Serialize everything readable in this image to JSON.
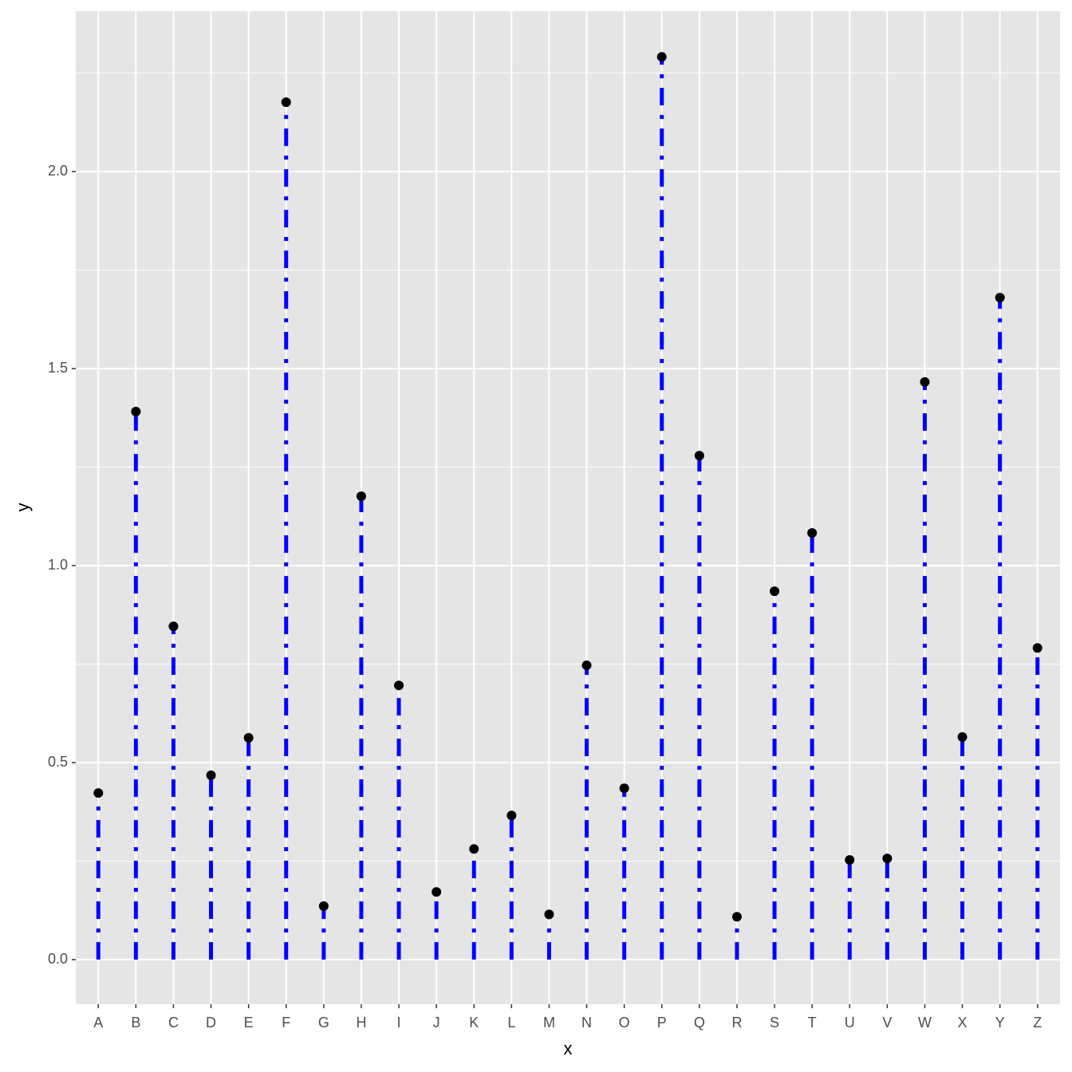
{
  "chart_data": {
    "type": "lollipop",
    "x_label": "x",
    "y_label": "y",
    "categories": [
      "A",
      "B",
      "C",
      "D",
      "E",
      "F",
      "G",
      "H",
      "I",
      "J",
      "K",
      "L",
      "M",
      "N",
      "O",
      "P",
      "Q",
      "R",
      "S",
      "T",
      "U",
      "V",
      "W",
      "X",
      "Y",
      "Z"
    ],
    "values": [
      0.423,
      1.391,
      0.846,
      0.468,
      0.563,
      2.176,
      0.136,
      1.176,
      0.696,
      0.172,
      0.281,
      0.366,
      0.115,
      0.747,
      0.435,
      2.291,
      1.279,
      0.109,
      0.935,
      1.083,
      0.253,
      0.257,
      1.466,
      0.565,
      1.68,
      0.791
    ],
    "color": "#0000ff",
    "point_color": "#000000",
    "ylim": [
      -0.113,
      2.407
    ],
    "yticks": [
      {
        "value": 0,
        "label": "0.0"
      },
      {
        "value": 0.5,
        "label": "0.5"
      },
      {
        "value": 1,
        "label": "1.0"
      },
      {
        "value": 1.5,
        "label": "1.5"
      },
      {
        "value": 2,
        "label": "2.0"
      }
    ],
    "grid": true
  }
}
